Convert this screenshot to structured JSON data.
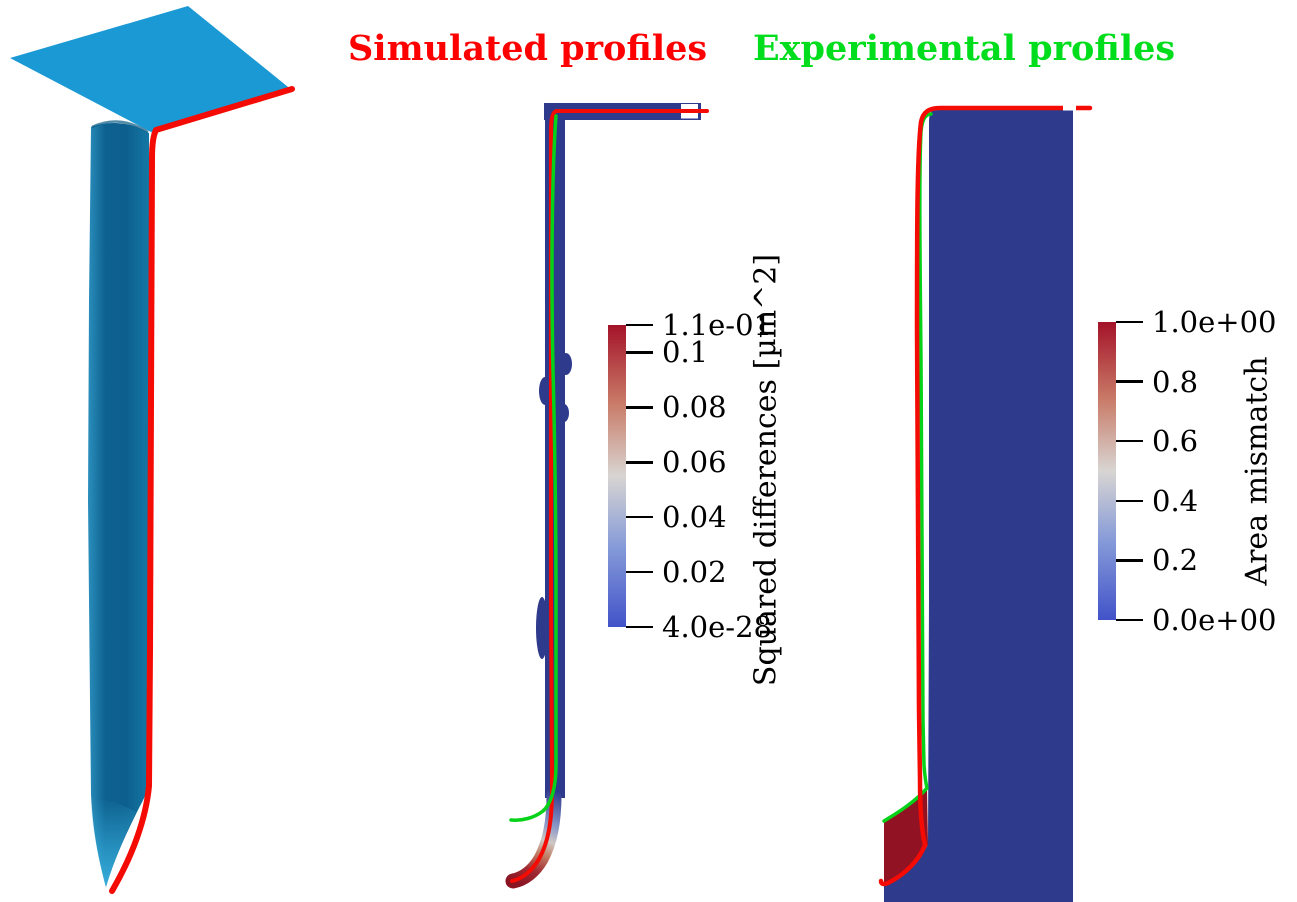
{
  "app": {
    "name": "trench-profile-comparison-figure"
  },
  "titles": {
    "simulated": {
      "label": "Simulated profiles",
      "color": "#fe0000"
    },
    "experimental": {
      "label": "Experimental profiles",
      "color": "#00dd1c"
    }
  },
  "colorbars": [
    {
      "id": "squared-differences",
      "title": "Squared differences [µm^2]",
      "ticks": [
        "1.1e-01",
        "0.1",
        "0.08",
        "0.06",
        "0.04",
        "0.02",
        "4.0e-28"
      ],
      "range_max": 0.11,
      "range_min": 4e-28
    },
    {
      "id": "area-mismatch",
      "title": "Area mismatch",
      "ticks": [
        "1.0e+00",
        "0.8",
        "0.6",
        "0.4",
        "0.2",
        "0.0e+00"
      ],
      "range_max": 1.0,
      "range_min": 0.0
    }
  ],
  "colors": {
    "title-red": "#fe0000",
    "title-green": "#00dd1c",
    "plate-blue": "#1b99d5",
    "pillar-dark": "#0d6190",
    "pillar-light": "#2b8fbd",
    "tip-cyan": "#3ab4e2",
    "field-navy": "#2e3a8c",
    "field-maroon": "#901223",
    "profile-red": "#f30b04",
    "profile-green": "#06d219",
    "cbar-top": "#a41329",
    "cbar-salmon": "#c97b68",
    "cbar-mid": "#d8d5d2",
    "cbar-lightblue": "#8499d8",
    "cbar-bottom": "#4253c9",
    "tick-black": "#000000"
  },
  "chart_data": [
    {
      "type": "heatmap",
      "title": "Simulated profiles",
      "colorbar_label": "Squared differences [µm^2]",
      "colorbar_ticks": [
        "1.1e-01",
        "0.1",
        "0.08",
        "0.06",
        "0.04",
        "0.02",
        "4.0e-28"
      ],
      "value_range": [
        4e-28,
        0.11
      ],
      "colormap": "cool-warm diverging (blue-white-red)",
      "legend_position": "right",
      "description": "Thin L-shaped trench profile band colored by squared differences; values near 0 (navy) along the wall, rising to the maximum 1.1e-01 (dark red) at the curved trench-bottom hook. Red simulated contour and green experimental contour overlaid; green contour departs left near the bottom."
    },
    {
      "type": "heatmap",
      "title": "Experimental profiles",
      "colorbar_label": "Area mismatch",
      "colorbar_ticks": [
        "1.0e+00",
        "0.8",
        "0.6",
        "0.4",
        "0.2",
        "0.0e+00"
      ],
      "value_range": [
        0.0,
        1.0
      ],
      "colormap": "cool-warm diverging (blue-white-red)",
      "legend_position": "right",
      "description": "Experimental trench cross-section filled navy (area mismatch 0) with a dark-red region (mismatch 1) in the lower-left trench bottom, bounded above by the green experimental contour and below by the red simulated contour."
    },
    {
      "type": "heatmap",
      "title": "3D trench rendering",
      "colorbar_label": "",
      "colorbar_ticks": [],
      "value_range": [],
      "colormap": "",
      "legend_position": "none",
      "description": "Isometric 3D view of a blue wafer surface plate with a deep cylindrical etched trench tapering to a point; a thick red profile cut-line traces the plate edge and the right side of the trench down around the tip."
    }
  ]
}
